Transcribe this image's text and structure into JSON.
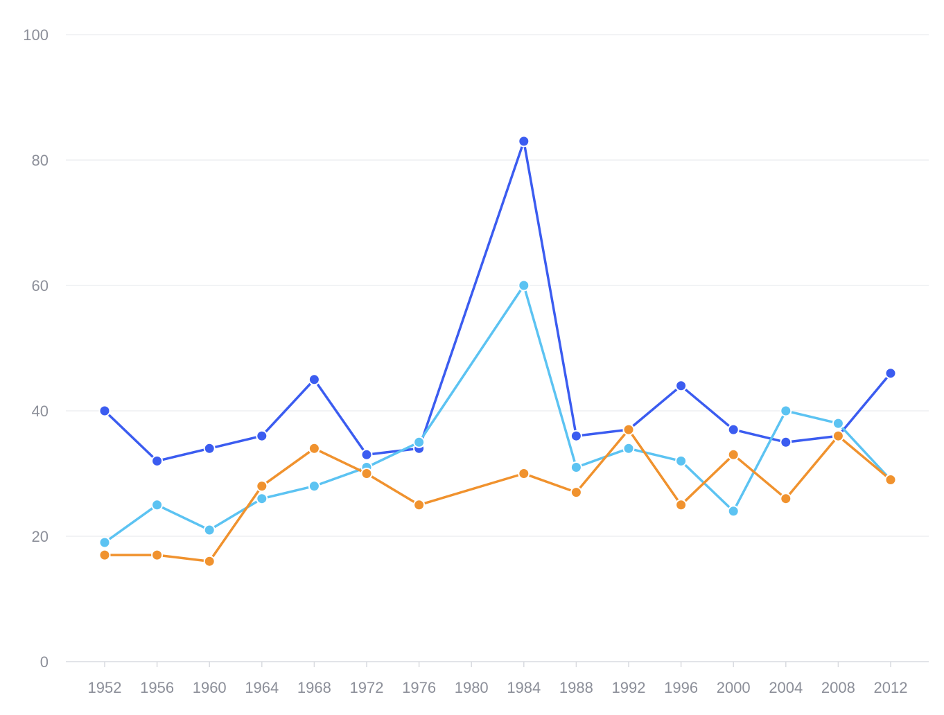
{
  "chart_data": {
    "type": "line",
    "title": "",
    "xlabel": "",
    "ylabel": "",
    "x": [
      1952,
      1956,
      1960,
      1964,
      1968,
      1972,
      1976,
      1980,
      1984,
      1988,
      1992,
      1996,
      2000,
      2004,
      2008,
      2012
    ],
    "x_ticks": [
      "1952",
      "1956",
      "1960",
      "1964",
      "1968",
      "1972",
      "1976",
      "1980",
      "1984",
      "1988",
      "1992",
      "1996",
      "2000",
      "2004",
      "2008",
      "2012"
    ],
    "ylim": [
      0,
      100
    ],
    "y_ticks": [
      "0",
      "20",
      "40",
      "60",
      "80",
      "100"
    ],
    "grid": true,
    "legend": "none",
    "series": [
      {
        "color": "#3b5cf0",
        "points": [
          [
            1952,
            40
          ],
          [
            1956,
            32
          ],
          [
            1960,
            34
          ],
          [
            1964,
            36
          ],
          [
            1968,
            45
          ],
          [
            1972,
            33
          ],
          [
            1976,
            34
          ],
          [
            1984,
            83
          ],
          [
            1988,
            36
          ],
          [
            1992,
            37
          ],
          [
            1996,
            44
          ],
          [
            2000,
            37
          ],
          [
            2004,
            35
          ],
          [
            2008,
            36
          ],
          [
            2012,
            46
          ]
        ]
      },
      {
        "color": "#5cc3f2",
        "points": [
          [
            1952,
            19
          ],
          [
            1956,
            25
          ],
          [
            1960,
            21
          ],
          [
            1964,
            26
          ],
          [
            1968,
            28
          ],
          [
            1972,
            31
          ],
          [
            1976,
            35
          ],
          [
            1984,
            60
          ],
          [
            1988,
            31
          ],
          [
            1992,
            34
          ],
          [
            1996,
            32
          ],
          [
            2000,
            24
          ],
          [
            2004,
            40
          ],
          [
            2008,
            38
          ],
          [
            2012,
            29
          ]
        ]
      },
      {
        "color": "#f0922e",
        "points": [
          [
            1952,
            17
          ],
          [
            1956,
            17
          ],
          [
            1960,
            16
          ],
          [
            1964,
            28
          ],
          [
            1968,
            34
          ],
          [
            1972,
            30
          ],
          [
            1976,
            25
          ],
          [
            1984,
            30
          ],
          [
            1988,
            27
          ],
          [
            1992,
            37
          ],
          [
            1996,
            25
          ],
          [
            2000,
            33
          ],
          [
            2004,
            26
          ],
          [
            2008,
            36
          ],
          [
            2012,
            29
          ]
        ]
      }
    ]
  }
}
